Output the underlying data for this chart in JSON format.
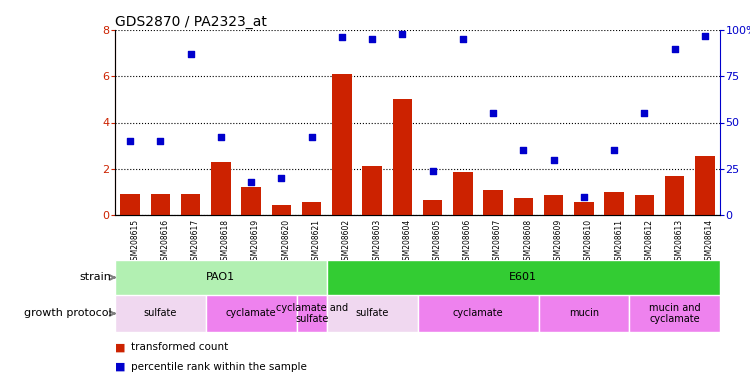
{
  "title": "GDS2870 / PA2323_at",
  "samples": [
    "GSM208615",
    "GSM208616",
    "GSM208617",
    "GSM208618",
    "GSM208619",
    "GSM208620",
    "GSM208621",
    "GSM208602",
    "GSM208603",
    "GSM208604",
    "GSM208605",
    "GSM208606",
    "GSM208607",
    "GSM208608",
    "GSM208609",
    "GSM208610",
    "GSM208611",
    "GSM208612",
    "GSM208613",
    "GSM208614"
  ],
  "transformed_count": [
    0.9,
    0.9,
    0.9,
    2.3,
    1.2,
    0.45,
    0.55,
    6.1,
    2.1,
    5.0,
    0.65,
    1.85,
    1.1,
    0.75,
    0.85,
    0.55,
    1.0,
    0.85,
    1.7,
    2.55
  ],
  "percentile_rank": [
    40,
    40,
    87,
    42,
    18,
    20,
    42,
    96,
    95,
    98,
    24,
    95,
    55,
    35,
    30,
    10,
    35,
    55,
    90,
    97
  ],
  "ylim_left": [
    0,
    8
  ],
  "ylim_right": [
    0,
    100
  ],
  "yticks_left": [
    0,
    2,
    4,
    6,
    8
  ],
  "yticks_right": [
    0,
    25,
    50,
    75,
    100
  ],
  "strain_groups": [
    {
      "label": "PAO1",
      "start": 0,
      "end": 7,
      "color": "#b2f0b2"
    },
    {
      "label": "E601",
      "start": 7,
      "end": 20,
      "color": "#33cc33"
    }
  ],
  "growth_groups": [
    {
      "label": "sulfate",
      "start": 0,
      "end": 3,
      "color": "#f0d8f0"
    },
    {
      "label": "cyclamate",
      "start": 3,
      "end": 6,
      "color": "#ee82ee"
    },
    {
      "label": "cyclamate and\nsulfate",
      "start": 6,
      "end": 7,
      "color": "#ee82ee"
    },
    {
      "label": "sulfate",
      "start": 7,
      "end": 10,
      "color": "#f0d8f0"
    },
    {
      "label": "cyclamate",
      "start": 10,
      "end": 14,
      "color": "#ee82ee"
    },
    {
      "label": "mucin",
      "start": 14,
      "end": 17,
      "color": "#ee82ee"
    },
    {
      "label": "mucin and\ncyclamate",
      "start": 17,
      "end": 20,
      "color": "#ee82ee"
    }
  ],
  "bar_color": "#cc2200",
  "scatter_color": "#0000cc",
  "dotted_line_color": "#000000",
  "bg_color": "#ffffff",
  "xticklabel_bg": "#c8c8c8",
  "plot_bg": "#ffffff"
}
